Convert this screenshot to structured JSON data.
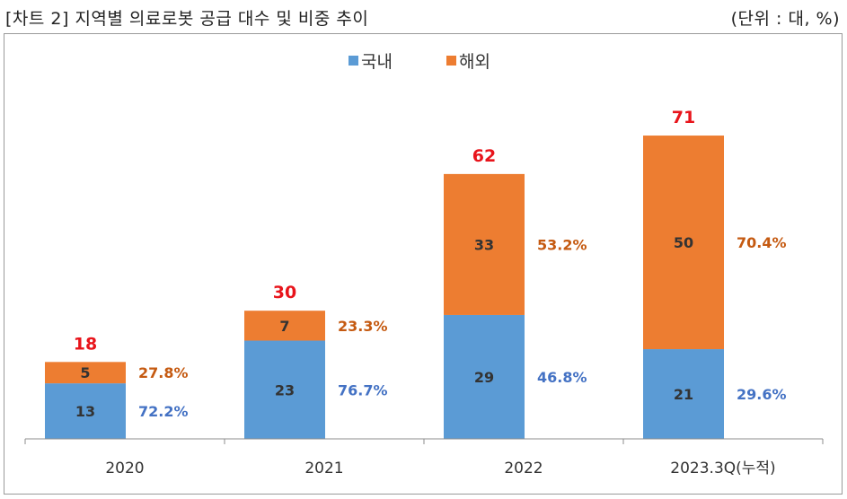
{
  "header": {
    "title": "[차트 2] 지역별 의료로봇 공급 대수 및 비중 추이",
    "unit": "(단위 : 대, %)"
  },
  "colors": {
    "domestic": "#5b9bd5",
    "overseas": "#ed7d31",
    "total": "#e8141b",
    "domestic_share": "#4472c4",
    "overseas_share": "#c55a11"
  },
  "chart_data": {
    "type": "bar",
    "stacked": true,
    "categories": [
      "2020",
      "2021",
      "2022",
      "2023.3Q(누적)"
    ],
    "series": [
      {
        "name": "국내",
        "values": [
          13,
          23,
          29,
          21
        ],
        "shares": [
          "72.2%",
          "76.7%",
          "46.8%",
          "29.6%"
        ]
      },
      {
        "name": "해외",
        "values": [
          5,
          7,
          33,
          50
        ],
        "shares": [
          "27.8%",
          "23.3%",
          "53.2%",
          "70.4%"
        ]
      }
    ],
    "totals": [
      18,
      30,
      62,
      71
    ],
    "title": "",
    "xlabel": "",
    "ylabel": "",
    "ylim": [
      0,
      80
    ],
    "legend": "top-center",
    "grid": false
  }
}
